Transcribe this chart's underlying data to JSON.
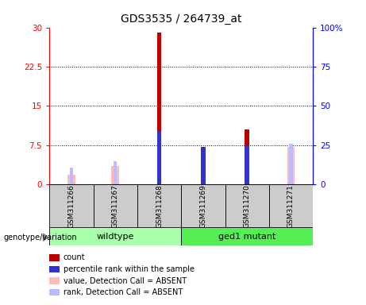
{
  "title": "GDS3535 / 264739_at",
  "samples": [
    "GSM311266",
    "GSM311267",
    "GSM311268",
    "GSM311269",
    "GSM311270",
    "GSM311271"
  ],
  "count_values": [
    0,
    0,
    29.0,
    7.2,
    10.5,
    0
  ],
  "percentile_rank": [
    0,
    0,
    10.0,
    7.0,
    7.3,
    0
  ],
  "value_absent": [
    1.8,
    3.5,
    0,
    0,
    0,
    7.2
  ],
  "rank_absent": [
    3.2,
    4.5,
    0,
    0,
    0,
    7.8
  ],
  "ylim_left": [
    0,
    30
  ],
  "ylim_right": [
    0,
    100
  ],
  "yticks_left": [
    0,
    7.5,
    15,
    22.5,
    30
  ],
  "ytick_labels_left": [
    "0",
    "7.5",
    "15",
    "22.5",
    "30"
  ],
  "yticks_right": [
    0,
    25,
    50,
    75,
    100
  ],
  "ytick_labels_right": [
    "0",
    "25",
    "50",
    "75",
    "100%"
  ],
  "color_count": "#bb0000",
  "color_percentile": "#3333cc",
  "color_value_absent": "#ffbbbb",
  "color_rank_absent": "#bbbbff",
  "color_group_wildtype": "#aaffaa",
  "color_group_mutant": "#55ee55",
  "color_sample_bg": "#cccccc",
  "genotype_label": "genotype/variation"
}
